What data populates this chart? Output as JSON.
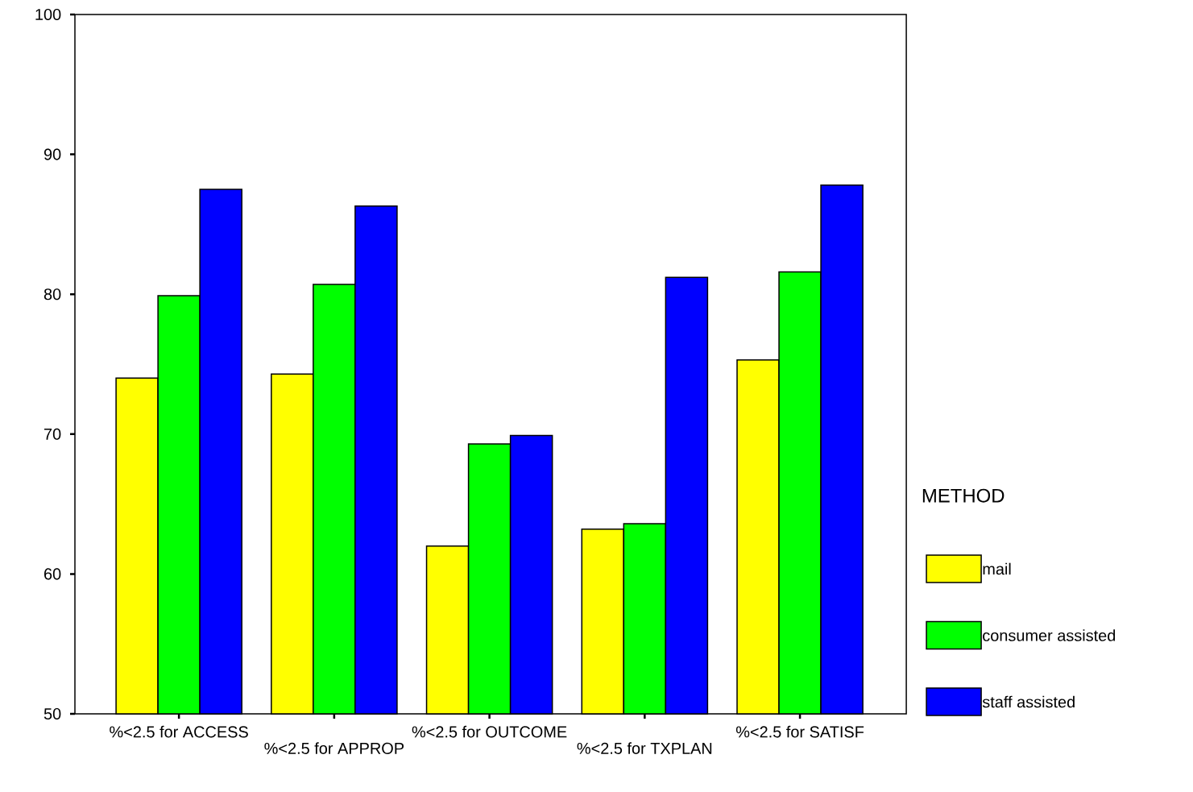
{
  "chart_data": {
    "type": "bar",
    "legend_title": "METHOD",
    "legend": "right",
    "categories": [
      "%<2.5 for ACCESS",
      "%<2.5 for APPROP",
      "%<2.5 for OUTCOME",
      "%<2.5 for TXPLAN",
      "%<2.5 for SATISF"
    ],
    "series": [
      {
        "name": "mail",
        "color": "#ffff00",
        "values": [
          74.0,
          74.3,
          62.0,
          63.2,
          75.3
        ]
      },
      {
        "name": "consumer assisted",
        "color": "#00ff00",
        "values": [
          79.9,
          80.7,
          69.3,
          63.6,
          81.6
        ]
      },
      {
        "name": "staff assisted",
        "color": "#0000ff",
        "values": [
          87.5,
          86.3,
          69.9,
          81.2,
          87.8
        ]
      }
    ],
    "ylim": [
      50,
      100
    ],
    "yticks": [
      50,
      60,
      70,
      80,
      90,
      100
    ],
    "grid": false
  }
}
